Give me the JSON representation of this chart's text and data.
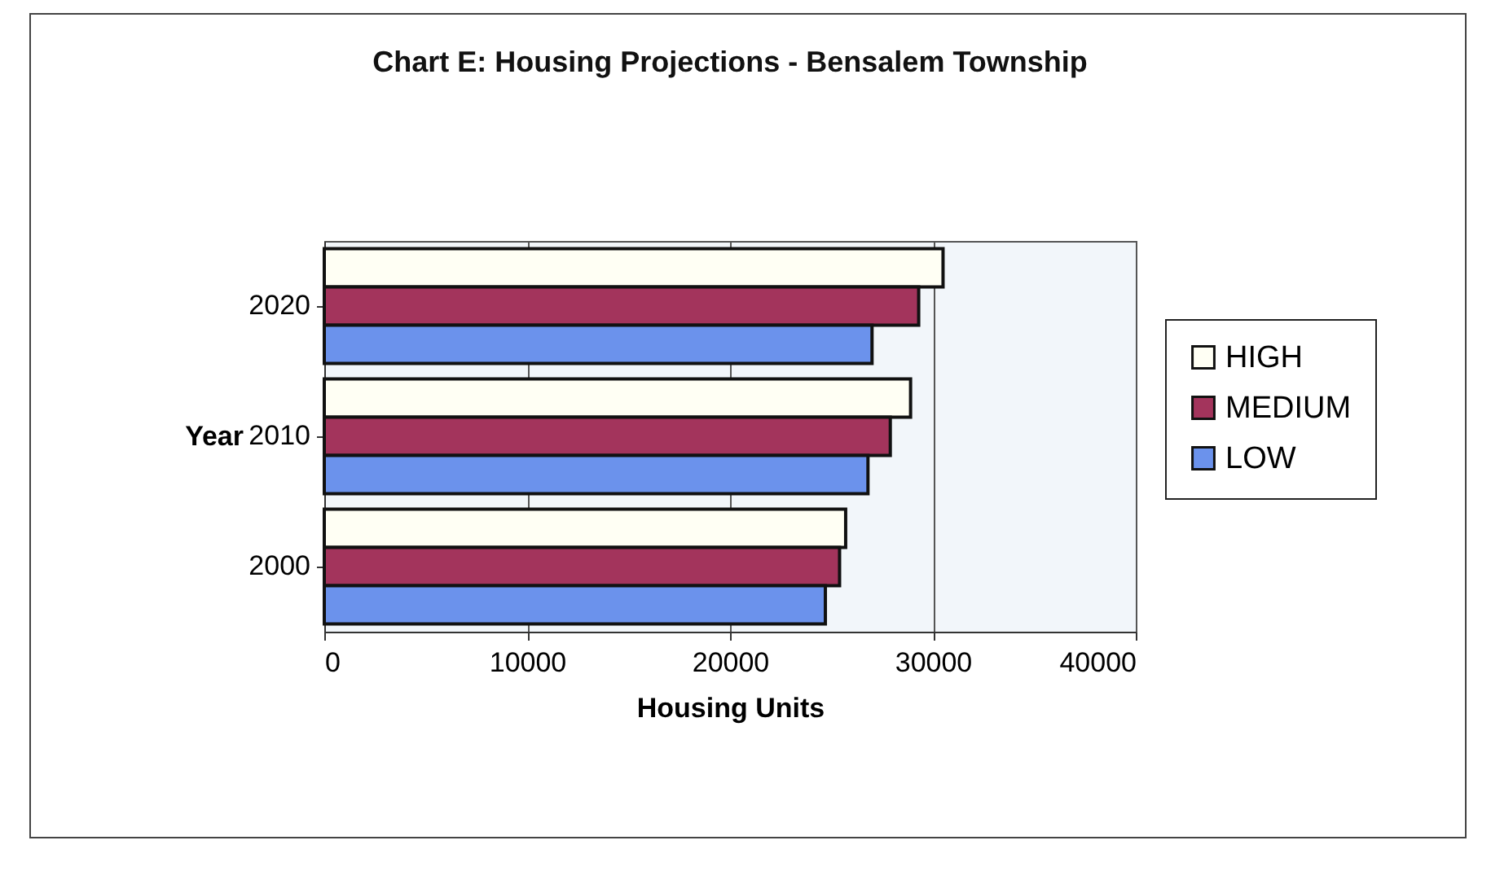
{
  "chart_data": {
    "type": "bar",
    "orientation": "horizontal",
    "title": "Chart E: Housing Projections - Bensalem Township",
    "xlabel": "Housing Units",
    "ylabel": "Year",
    "categories": [
      "2020",
      "2010",
      "2000"
    ],
    "series": [
      {
        "name": "HIGH",
        "color": "#fffff4",
        "values": [
          30500,
          28900,
          25700
        ]
      },
      {
        "name": "MEDIUM",
        "color": "#a3345c",
        "values": [
          29300,
          27900,
          25400
        ]
      },
      {
        "name": "LOW",
        "color": "#6b92ec",
        "values": [
          27000,
          26800,
          24700
        ]
      }
    ],
    "xlim": [
      0,
      40000
    ],
    "xticks": [
      0,
      {
        "value": 10000,
        "label": "10000"
      },
      {
        "value": 20000,
        "label": "20000"
      },
      {
        "value": 30000,
        "label": "30000"
      },
      {
        "value": 40000,
        "label": "40000"
      }
    ],
    "grid": "x",
    "legend": "right"
  }
}
